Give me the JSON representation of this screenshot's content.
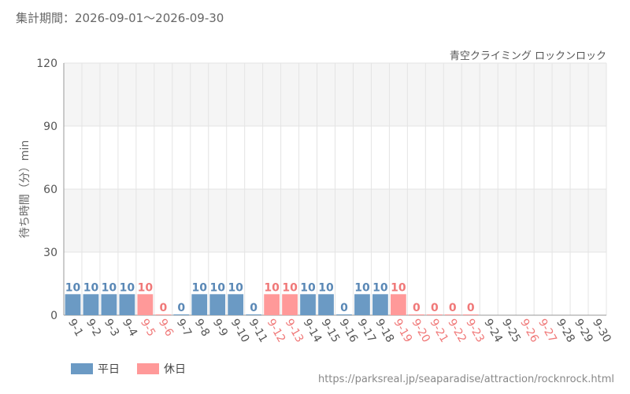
{
  "header": {
    "period": "集計期間：2026-09-01～2026-09-30",
    "source_url": "https://parksreal.jp/seaparadise/attraction/rocknrock.html"
  },
  "legend": [
    {
      "label": "平日",
      "color": "#6b9ac4"
    },
    {
      "label": "休日",
      "color": "#ff9999"
    }
  ],
  "colors": {
    "weekday_bar": "#6b9ac4",
    "holiday_bar": "#ff9999",
    "weekday_text": "#5a88b6",
    "holiday_text": "#f07878",
    "tick_text": "#555555"
  },
  "chart_data": {
    "type": "bar",
    "title": "青空クライミング ロックンロック",
    "ylabel": "待ち時間（分）min",
    "xlabel": "",
    "ylim": [
      0,
      120
    ],
    "yticks": [
      0,
      30,
      60,
      90,
      120
    ],
    "grid": true,
    "legend_position": "bottom-left",
    "categories": [
      "9-1",
      "9-2",
      "9-3",
      "9-4",
      "9-5",
      "9-6",
      "9-7",
      "9-8",
      "9-9",
      "9-10",
      "9-11",
      "9-12",
      "9-13",
      "9-14",
      "9-15",
      "9-16",
      "9-17",
      "9-18",
      "9-19",
      "9-20",
      "9-21",
      "9-22",
      "9-23",
      "9-24",
      "9-25",
      "9-26",
      "9-27",
      "9-28",
      "9-29",
      "9-30"
    ],
    "values": [
      10,
      10,
      10,
      10,
      10,
      0,
      0,
      10,
      10,
      10,
      0,
      10,
      10,
      10,
      10,
      0,
      10,
      10,
      10,
      0,
      0,
      0,
      0,
      null,
      null,
      null,
      null,
      null,
      null,
      null
    ],
    "day_type": [
      "平日",
      "平日",
      "平日",
      "平日",
      "休日",
      "休日",
      "平日",
      "平日",
      "平日",
      "平日",
      "平日",
      "休日",
      "休日",
      "平日",
      "平日",
      "平日",
      "平日",
      "平日",
      "休日",
      "休日",
      "休日",
      "休日",
      "休日",
      "平日",
      "平日",
      "休日",
      "休日",
      "平日",
      "平日",
      "平日"
    ]
  }
}
